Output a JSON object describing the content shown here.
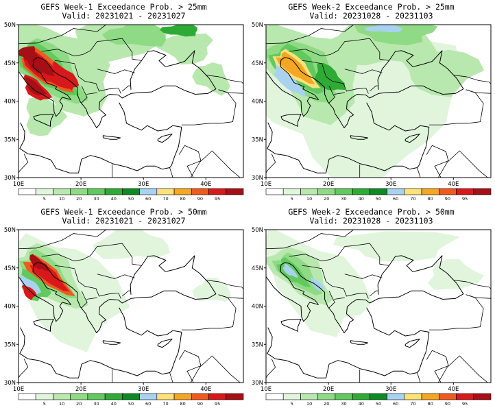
{
  "panels": [
    {
      "title": "GEFS Week-1 Exceedance Prob. > 25mm",
      "valid": "Valid: 20231021 - 20231027"
    },
    {
      "title": "GEFS Week-2 Exceedance Prob. > 25mm",
      "valid": "Valid: 20231028 - 20231103"
    },
    {
      "title": "GEFS Week-1 Exceedance Prob. > 50mm",
      "valid": "Valid: 20231021 - 20231027"
    },
    {
      "title": "GEFS Week-2 Exceedance Prob. > 50mm",
      "valid": "Valid: 20231028 - 20231103"
    }
  ],
  "axes": {
    "lat_labels": [
      "50N",
      "45N",
      "40N",
      "35N",
      "30N"
    ],
    "lon_labels": [
      "10E",
      "20E",
      "30E",
      "40E"
    ]
  },
  "colorbar": {
    "labels": [
      "5",
      "10",
      "20",
      "30",
      "40",
      "50",
      "60",
      "70",
      "80",
      "90",
      "95"
    ],
    "colors": [
      "#ffffff",
      "#e0f5dc",
      "#b8e8ae",
      "#8fdb85",
      "#62c95e",
      "#2eab34",
      "#0d8a23",
      "#a8d2f0",
      "#fde27a",
      "#f5a623",
      "#f05a1e",
      "#d7191c",
      "#a50f15"
    ]
  }
}
